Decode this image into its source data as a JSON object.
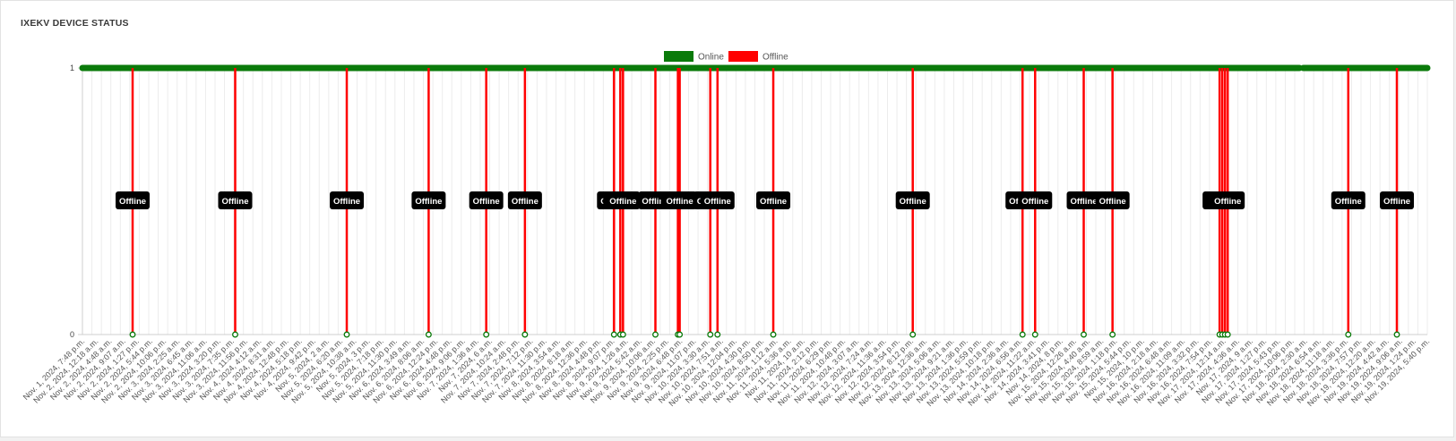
{
  "page": {
    "title": "IXEKV DEVICE STATUS"
  },
  "colors": {
    "online": "#0a7a0a",
    "offline": "#ff0000",
    "label_bg": "#000000",
    "grid": "#ececec"
  },
  "chart_data": {
    "type": "line",
    "title": "",
    "xlabel": "",
    "ylabel": "",
    "ylim": [
      0,
      1
    ],
    "yticks": [
      "0",
      "1"
    ],
    "grid": true,
    "legend_position": "top-center",
    "legend": [
      {
        "name": "Online",
        "color": "#0a7a0a"
      },
      {
        "name": "Offline",
        "color": "#ff0000"
      }
    ],
    "x_tick_labels": [
      "Nov. 1, 2024, 7:48 p.m.",
      "Nov. 2, 2024, 12:18 a.m.",
      "Nov. 2, 2024, 4:48 a.m.",
      "Nov. 2, 2024, 9:07 a.m.",
      "Nov. 2, 2024, 1:27 p.m.",
      "Nov. 2, 2024, 5:44 p.m.",
      "Nov. 2, 2024, 10:06 p.m.",
      "Nov. 3, 2024, 2:25 a.m.",
      "Nov. 3, 2024, 6:45 a.m.",
      "Nov. 3, 2024, 11:06 a.m.",
      "Nov. 3, 2024, 3:20 p.m.",
      "Nov. 3, 2024, 7:35 p.m.",
      "Nov. 3, 2024, 11:56 p.m.",
      "Nov. 4, 2024, 4:12 a.m.",
      "Nov. 4, 2024, 8:31 a.m.",
      "Nov. 4, 2024, 12:48 p.m.",
      "Nov. 4, 2024, 5:18 p.m.",
      "Nov. 4, 2024, 9:42 p.m.",
      "Nov. 5, 2024, 2 a.m.",
      "Nov. 5, 2024, 6:20 a.m.",
      "Nov. 5, 2024, 10:38 a.m.",
      "Nov. 5, 2024, 3 p.m.",
      "Nov. 5, 2024, 7:18 p.m.",
      "Nov. 5, 2024, 11:30 p.m.",
      "Nov. 6, 2024, 3:49 a.m.",
      "Nov. 6, 2024, 8:06 a.m.",
      "Nov. 6, 2024, 12:24 p.m.",
      "Nov. 6, 2024, 4:48 p.m.",
      "Nov. 6, 2024, 9:06 p.m.",
      "Nov. 7, 2024, 1:36 a.m.",
      "Nov. 7, 2024, 6 a.m.",
      "Nov. 7, 2024, 10:24 a.m.",
      "Nov. 7, 2024, 2:48 p.m.",
      "Nov. 7, 2024, 7:12 p.m.",
      "Nov. 7, 2024, 11:30 p.m.",
      "Nov. 8, 2024, 3:54 a.m.",
      "Nov. 8, 2024, 8:18 a.m.",
      "Nov. 8, 2024, 12:36 p.m.",
      "Nov. 8, 2024, 4:48 p.m.",
      "Nov. 8, 2024, 9:07 p.m.",
      "Nov. 9, 2024, 1:26 a.m.",
      "Nov. 9, 2024, 5:42 a.m.",
      "Nov. 9, 2024, 10:06 a.m.",
      "Nov. 9, 2024, 2:25 p.m.",
      "Nov. 9, 2024, 6:48 p.m.",
      "Nov. 9, 2024, 11:07 p.m.",
      "Nov. 10, 2024, 3:30 a.m.",
      "Nov. 10, 2024, 7:51 a.m.",
      "Nov. 10, 2024, 12:04 p.m.",
      "Nov. 10, 2024, 4:30 p.m.",
      "Nov. 10, 2024, 8:50 p.m.",
      "Nov. 11, 2024, 1:12 a.m.",
      "Nov. 11, 2024, 5:36 a.m.",
      "Nov. 11, 2024, 10 a.m.",
      "Nov. 11, 2024, 2:12 p.m.",
      "Nov. 11, 2024, 6:29 p.m.",
      "Nov. 11, 2024, 10:48 p.m.",
      "Nov. 12, 2024, 3:07 a.m.",
      "Nov. 12, 2024, 7:24 a.m.",
      "Nov. 12, 2024, 11:36 a.m.",
      "Nov. 12, 2024, 3:54 p.m.",
      "Nov. 12, 2024, 8:12 p.m.",
      "Nov. 13, 2024, 12:36 a.m.",
      "Nov. 13, 2024, 5:06 a.m.",
      "Nov. 13, 2024, 9:21 a.m.",
      "Nov. 13, 2024, 1:36 p.m.",
      "Nov. 13, 2024, 5:59 p.m.",
      "Nov. 13, 2024, 10:18 p.m.",
      "Nov. 14, 2024, 2:36 a.m.",
      "Nov. 14, 2024, 6:56 a.m.",
      "Nov. 14, 2024, 11:22 a.m.",
      "Nov. 14, 2024, 3:41 p.m.",
      "Nov. 14, 2024, 8 p.m.",
      "Nov. 15, 2024, 12:26 a.m.",
      "Nov. 15, 2024, 4:40 a.m.",
      "Nov. 15, 2024, 8:59 a.m.",
      "Nov. 15, 2024, 1:18 p.m.",
      "Nov. 15, 2024, 5:44 p.m.",
      "Nov. 15, 2024, 10 p.m.",
      "Nov. 16, 2024, 2:18 a.m.",
      "Nov. 16, 2024, 6:48 a.m.",
      "Nov. 16, 2024, 11:09 a.m.",
      "Nov. 16, 2024, 3:32 p.m.",
      "Nov. 16, 2024, 7:54 p.m.",
      "Nov. 17, 2024, 12:14 a.m.",
      "Nov. 17, 2024, 4:36 a.m.",
      "Nov. 17, 2024, 9 a.m.",
      "Nov. 17, 2024, 1:27 p.m.",
      "Nov. 17, 2024, 5:43 p.m.",
      "Nov. 17, 2024, 10:06 p.m.",
      "Nov. 18, 2024, 2:30 a.m.",
      "Nov. 18, 2024, 6:54 a.m.",
      "Nov. 18, 2024, 11:18 a.m.",
      "Nov. 18, 2024, 3:36 p.m.",
      "Nov. 18, 2024, 7:57 p.m.",
      "Nov. 19, 2024, 12:20 a.m.",
      "Nov. 19, 2024, 4:42 a.m.",
      "Nov. 19, 2024, 9:06 a.m.",
      "Nov. 19, 2024, 1:24 p.m.",
      "Nov. 19, 2024, 5:40 p.m."
    ],
    "x_point_count": 143,
    "series": [
      {
        "name": "Online",
        "value": 1,
        "segments": [
          [
            0,
            128.5
          ],
          [
            128.9,
            142
          ]
        ]
      },
      {
        "name": "Offline",
        "value": 0,
        "events": [
          {
            "x": 7.5,
            "label": "Offline"
          },
          {
            "x": 18.9,
            "label": "Offline"
          },
          {
            "x": 31.3,
            "label": "Offline"
          },
          {
            "x": 40.4,
            "label": "Offline"
          },
          {
            "x": 46.8,
            "label": "Offline"
          },
          {
            "x": 51.1,
            "label": "Offline"
          },
          {
            "x": 61.0,
            "label": "Offline"
          },
          {
            "x": 61.7,
            "label": "Offline"
          },
          {
            "x": 62.0,
            "label": "Offline"
          },
          {
            "x": 65.6,
            "label": "Offline"
          },
          {
            "x": 68.1,
            "label": "Offline"
          },
          {
            "x": 68.3,
            "label": "Offline"
          },
          {
            "x": 71.7,
            "label": "Offline"
          },
          {
            "x": 72.5,
            "label": "Offline"
          },
          {
            "x": 78.7,
            "label": "Offline"
          },
          {
            "x": 94.2,
            "label": "Offline"
          },
          {
            "x": 106.4,
            "label": "Offline"
          },
          {
            "x": 107.8,
            "label": "Offline"
          },
          {
            "x": 113.2,
            "label": "Offline"
          },
          {
            "x": 116.4,
            "label": "Offline"
          },
          {
            "x": 128.3,
            "label": "Offline"
          },
          {
            "x": 128.6,
            "label": "Offline"
          },
          {
            "x": 128.9,
            "label": "Offline"
          },
          {
            "x": 129.2,
            "label": "Offline"
          },
          {
            "x": 142.6,
            "label": "Offline"
          },
          {
            "x": 148.0,
            "label": "Offline"
          }
        ]
      }
    ]
  }
}
